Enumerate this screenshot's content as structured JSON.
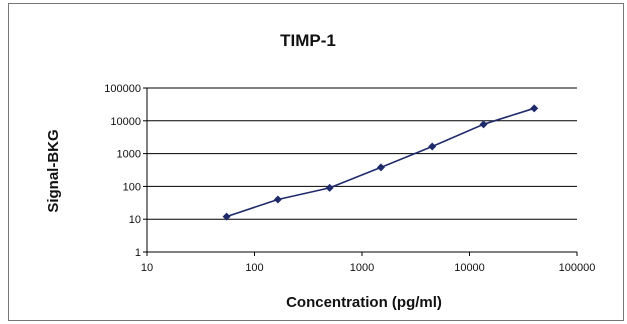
{
  "chart_data": {
    "type": "line",
    "title": "TIMP-1",
    "xlabel": "Concentration (pg/ml)",
    "ylabel": "Signal-BKG",
    "x_scale": "log",
    "y_scale": "log",
    "xlim": [
      10,
      100000
    ],
    "ylim": [
      1,
      100000
    ],
    "x_ticks": [
      "10",
      "100",
      "1000",
      "10000",
      "100000"
    ],
    "y_ticks": [
      "1",
      "10",
      "100",
      "1000",
      "10000",
      "100000"
    ],
    "grid": "horizontal major gridlines",
    "legend": "none",
    "series": [
      {
        "color": "#1f2a6b",
        "x": [
          55,
          165,
          500,
          1500,
          4500,
          13500,
          40000
        ],
        "y": [
          12,
          40,
          90,
          380,
          1650,
          7800,
          24000
        ]
      }
    ]
  }
}
